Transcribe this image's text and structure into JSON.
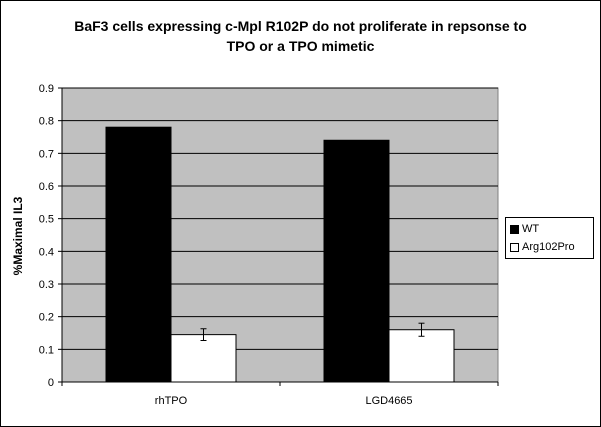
{
  "chart_data": {
    "type": "bar",
    "title": "BaF3 cells expressing c-Mpl R102P do not proliferate in repsonse to TPO or a TPO mimetic",
    "title_lines": [
      "BaF3 cells expressing c-Mpl R102P do not proliferate in repsonse to",
      "TPO or a TPO mimetic"
    ],
    "xlabel": "",
    "ylabel": "%Maximal IL3",
    "ylim": [
      0,
      0.9
    ],
    "yticks": [
      "0",
      "0.1",
      "0.2",
      "0.3",
      "0.4",
      "0.5",
      "0.6",
      "0.7",
      "0.8",
      "0.9"
    ],
    "categories": [
      "rhTPO",
      "LGD4665"
    ],
    "series": [
      {
        "name": "WT",
        "values": [
          0.78,
          0.74
        ],
        "errors": [
          null,
          null
        ],
        "color": "#000000"
      },
      {
        "name": "Arg102Pro",
        "values": [
          0.145,
          0.16
        ],
        "errors": [
          0.018,
          0.02
        ],
        "color": "#ffffff"
      }
    ],
    "plot_background": "#c0c0c0",
    "grid": true,
    "legend_position": "right"
  }
}
